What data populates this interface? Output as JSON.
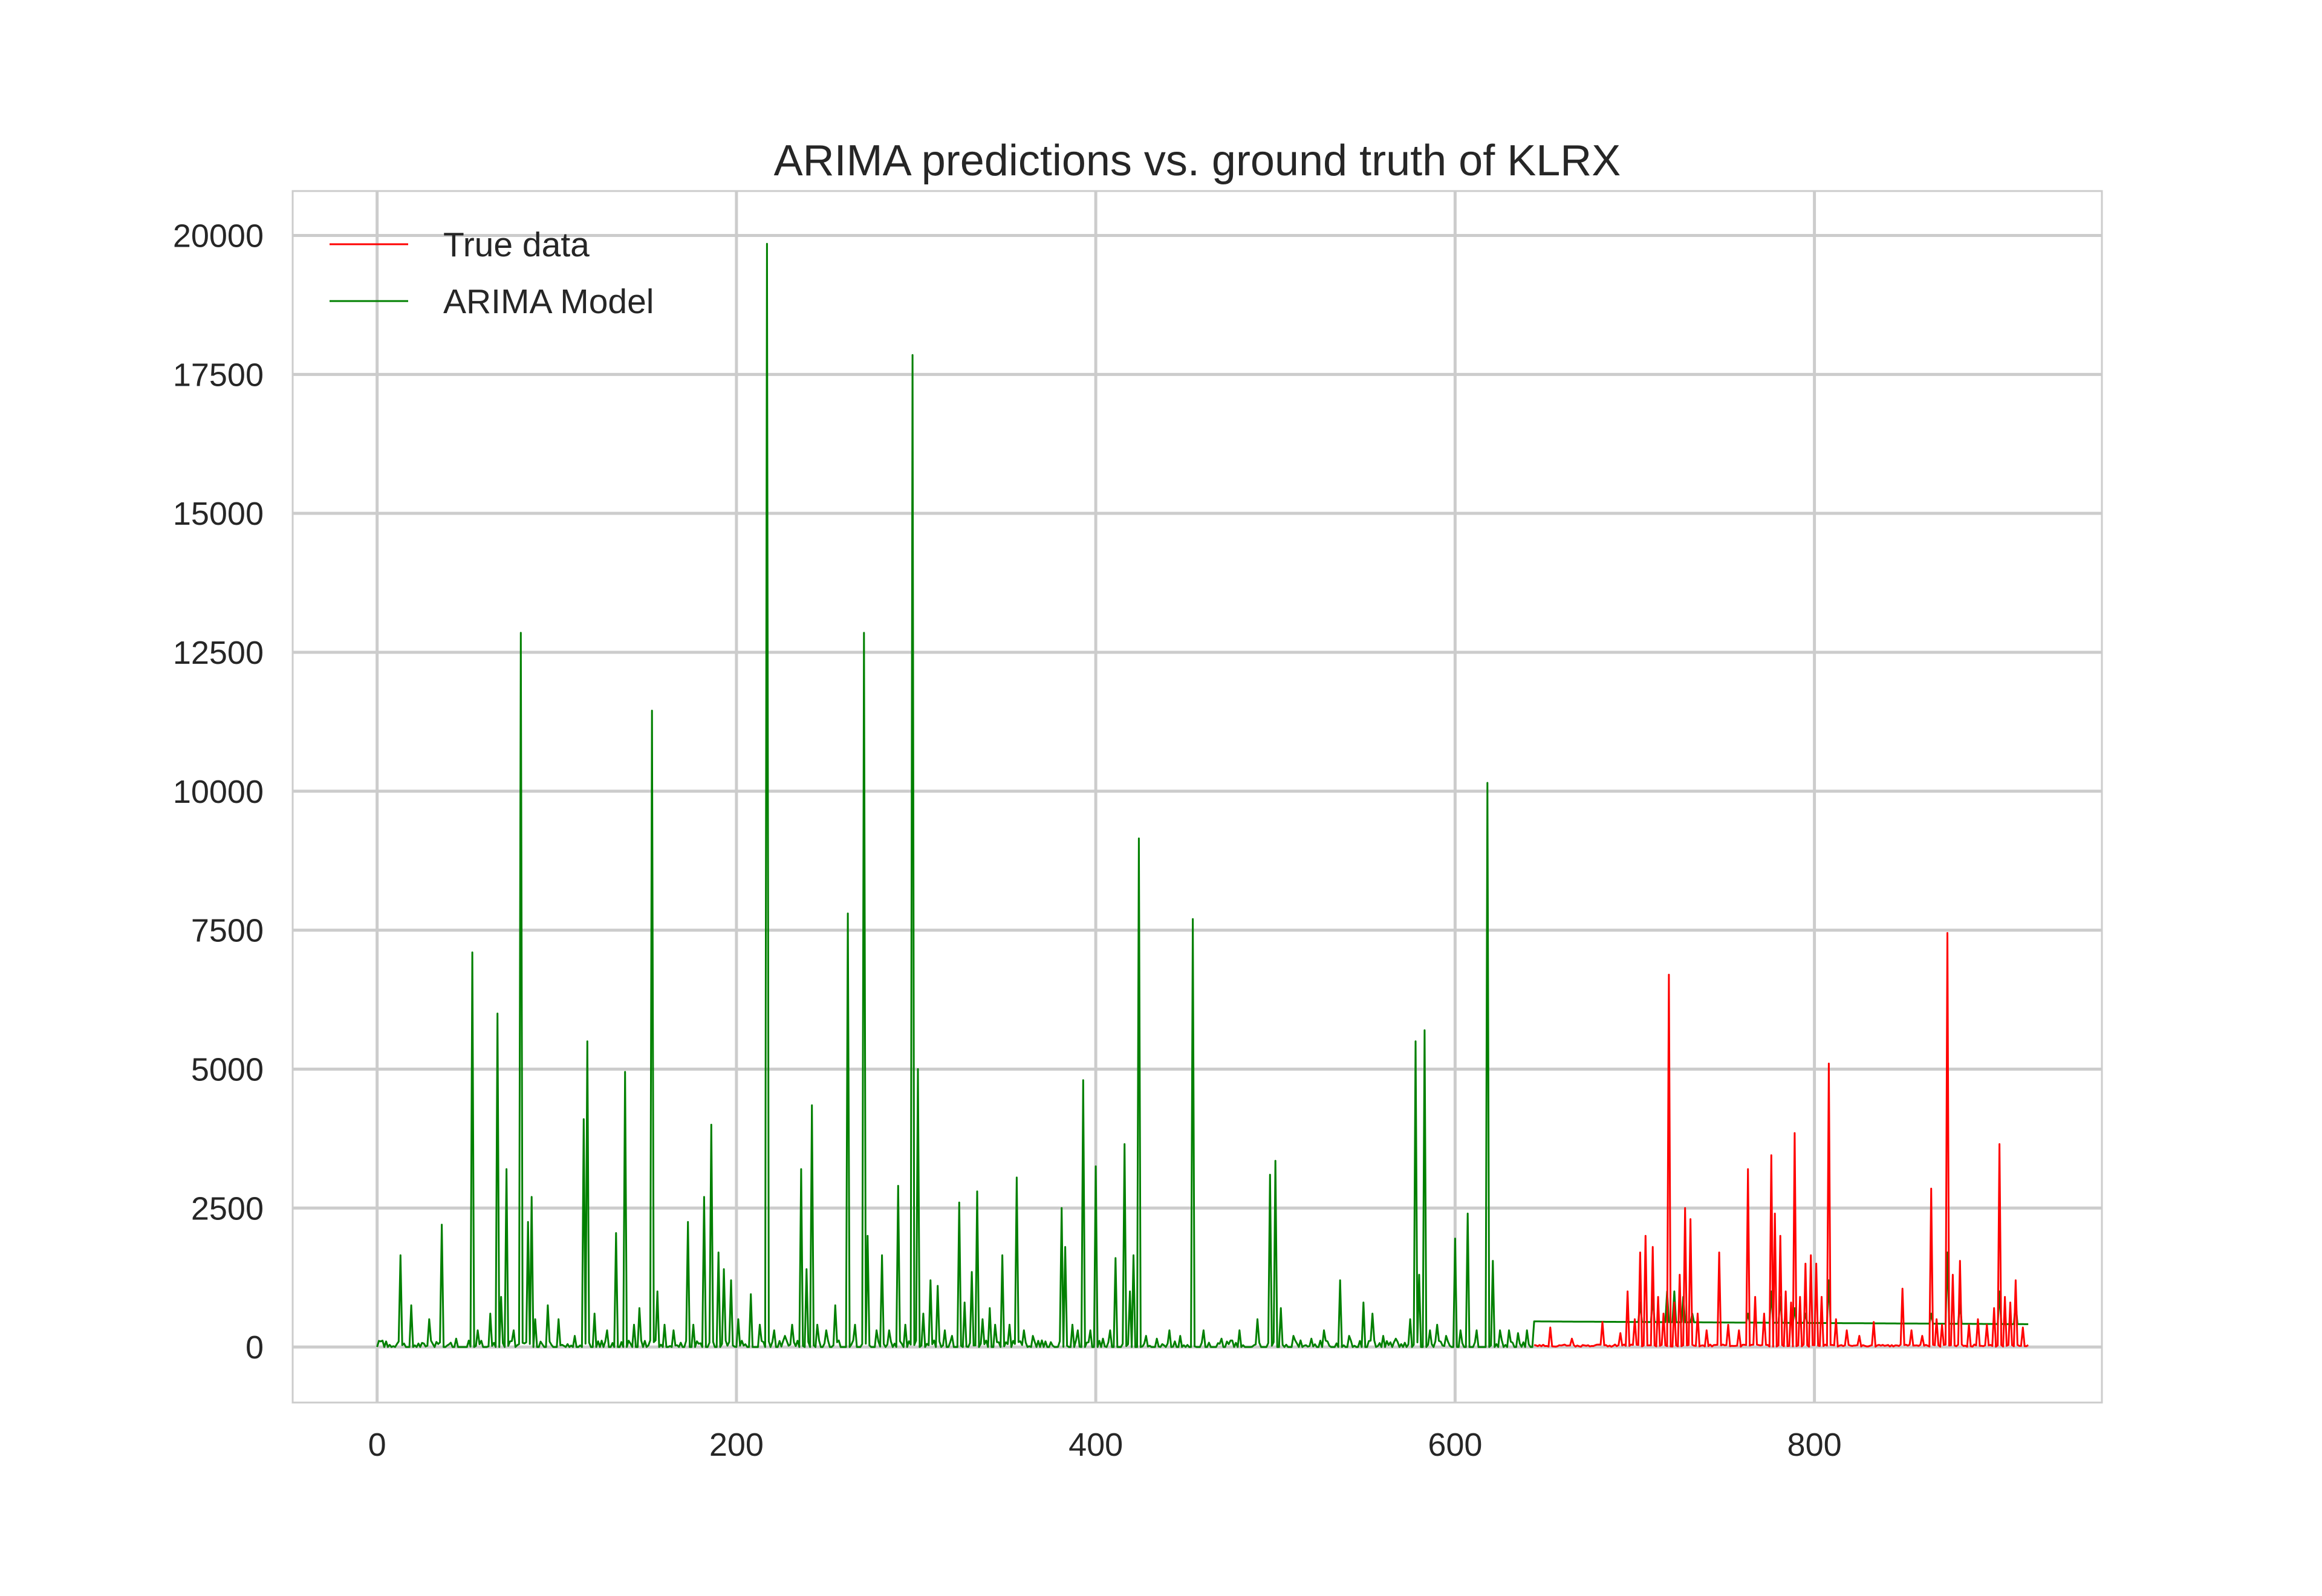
{
  "chart_data": {
    "type": "line",
    "title": "ARIMA predictions vs. ground truth of KLRX",
    "xlabel": "",
    "ylabel": "",
    "xlim": [
      -47,
      960
    ],
    "ylim": [
      -1000,
      20800
    ],
    "xticks": [
      0,
      200,
      400,
      600,
      800
    ],
    "yticks": [
      0,
      2500,
      5000,
      7500,
      10000,
      12500,
      15000,
      17500,
      20000
    ],
    "grid": true,
    "legend_position": "top-left",
    "series": [
      {
        "name": "True data",
        "color": "#ff0000",
        "baseline": 5,
        "x_range": [
          644,
          919
        ],
        "spikes": [
          [
            653,
            350
          ],
          [
            665,
            150
          ],
          [
            682,
            450
          ],
          [
            692,
            250
          ],
          [
            696,
            1000
          ],
          [
            700,
            500
          ],
          [
            703,
            1700
          ],
          [
            706,
            2000
          ],
          [
            710,
            1800
          ],
          [
            713,
            900
          ],
          [
            716,
            600
          ],
          [
            719,
            6700
          ],
          [
            722,
            800
          ],
          [
            725,
            1300
          ],
          [
            728,
            2500
          ],
          [
            731,
            2300
          ],
          [
            735,
            600
          ],
          [
            740,
            300
          ],
          [
            747,
            1700
          ],
          [
            752,
            400
          ],
          [
            758,
            300
          ],
          [
            763,
            3200
          ],
          [
            767,
            900
          ],
          [
            772,
            600
          ],
          [
            776,
            3450
          ],
          [
            778,
            2400
          ],
          [
            781,
            2000
          ],
          [
            784,
            1000
          ],
          [
            787,
            800
          ],
          [
            789,
            3850
          ],
          [
            792,
            900
          ],
          [
            795,
            1500
          ],
          [
            798,
            1650
          ],
          [
            801,
            1500
          ],
          [
            804,
            900
          ],
          [
            808,
            5100
          ],
          [
            812,
            500
          ],
          [
            818,
            300
          ],
          [
            825,
            200
          ],
          [
            833,
            450
          ],
          [
            849,
            1050
          ],
          [
            854,
            300
          ],
          [
            860,
            200
          ],
          [
            865,
            2850
          ],
          [
            868,
            500
          ],
          [
            871,
            400
          ],
          [
            874,
            7450
          ],
          [
            877,
            1300
          ],
          [
            881,
            1550
          ],
          [
            886,
            400
          ],
          [
            891,
            500
          ],
          [
            896,
            400
          ],
          [
            900,
            700
          ],
          [
            903,
            3650
          ],
          [
            906,
            900
          ],
          [
            909,
            800
          ],
          [
            912,
            1200
          ],
          [
            916,
            350
          ]
        ]
      },
      {
        "name": "ARIMA Model",
        "color": "#008000",
        "x_range": [
          0,
          919
        ],
        "forecast_start": 644,
        "forecast_level_start": 460,
        "forecast_level_end": 410,
        "spikes": [
          [
            5,
            100
          ],
          [
            13,
            1650
          ],
          [
            19,
            750
          ],
          [
            29,
            500
          ],
          [
            36,
            2200
          ],
          [
            44,
            150
          ],
          [
            53,
            7100
          ],
          [
            56,
            300
          ],
          [
            63,
            600
          ],
          [
            67,
            6000
          ],
          [
            69,
            900
          ],
          [
            72,
            3200
          ],
          [
            76,
            300
          ],
          [
            80,
            12850
          ],
          [
            84,
            2250
          ],
          [
            86,
            2700
          ],
          [
            88,
            500
          ],
          [
            95,
            750
          ],
          [
            101,
            500
          ],
          [
            110,
            200
          ],
          [
            115,
            4100
          ],
          [
            117,
            5500
          ],
          [
            121,
            600
          ],
          [
            128,
            300
          ],
          [
            133,
            2050
          ],
          [
            138,
            4950
          ],
          [
            143,
            400
          ],
          [
            146,
            700
          ],
          [
            153,
            11450
          ],
          [
            156,
            1000
          ],
          [
            160,
            400
          ],
          [
            165,
            300
          ],
          [
            173,
            2250
          ],
          [
            176,
            400
          ],
          [
            182,
            2700
          ],
          [
            186,
            4000
          ],
          [
            190,
            1700
          ],
          [
            193,
            1400
          ],
          [
            197,
            1200
          ],
          [
            201,
            500
          ],
          [
            208,
            950
          ],
          [
            213,
            400
          ],
          [
            217,
            19850
          ],
          [
            221,
            300
          ],
          [
            227,
            200
          ],
          [
            231,
            400
          ],
          [
            236,
            3200
          ],
          [
            239,
            1400
          ],
          [
            242,
            4350
          ],
          [
            245,
            400
          ],
          [
            250,
            300
          ],
          [
            255,
            750
          ],
          [
            262,
            7800
          ],
          [
            266,
            400
          ],
          [
            271,
            12850
          ],
          [
            273,
            2000
          ],
          [
            278,
            300
          ],
          [
            281,
            1650
          ],
          [
            285,
            300
          ],
          [
            290,
            2900
          ],
          [
            294,
            400
          ],
          [
            298,
            17850
          ],
          [
            301,
            5000
          ],
          [
            304,
            600
          ],
          [
            308,
            1200
          ],
          [
            312,
            1100
          ],
          [
            316,
            300
          ],
          [
            320,
            200
          ],
          [
            324,
            2600
          ],
          [
            327,
            800
          ],
          [
            331,
            1350
          ],
          [
            334,
            2800
          ],
          [
            337,
            500
          ],
          [
            341,
            700
          ],
          [
            344,
            400
          ],
          [
            348,
            1650
          ],
          [
            352,
            400
          ],
          [
            356,
            3050
          ],
          [
            360,
            300
          ],
          [
            365,
            200
          ],
          [
            372,
            100
          ],
          [
            381,
            2500
          ],
          [
            383,
            1800
          ],
          [
            387,
            400
          ],
          [
            390,
            300
          ],
          [
            393,
            4800
          ],
          [
            397,
            300
          ],
          [
            400,
            3250
          ],
          [
            404,
            150
          ],
          [
            408,
            300
          ],
          [
            411,
            1600
          ],
          [
            416,
            3650
          ],
          [
            419,
            1000
          ],
          [
            421,
            1650
          ],
          [
            424,
            9150
          ],
          [
            428,
            200
          ],
          [
            434,
            150
          ],
          [
            441,
            300
          ],
          [
            447,
            200
          ],
          [
            454,
            7700
          ],
          [
            460,
            300
          ],
          [
            470,
            150
          ],
          [
            480,
            300
          ],
          [
            490,
            500
          ],
          [
            497,
            3100
          ],
          [
            500,
            3350
          ],
          [
            503,
            700
          ],
          [
            510,
            200
          ],
          [
            520,
            150
          ],
          [
            527,
            300
          ],
          [
            536,
            1200
          ],
          [
            541,
            200
          ],
          [
            549,
            800
          ],
          [
            554,
            600
          ],
          [
            560,
            200
          ],
          [
            567,
            150
          ],
          [
            575,
            500
          ],
          [
            578,
            5500
          ],
          [
            580,
            1300
          ],
          [
            583,
            5700
          ],
          [
            586,
            300
          ],
          [
            590,
            400
          ],
          [
            595,
            200
          ],
          [
            600,
            1950
          ],
          [
            603,
            300
          ],
          [
            607,
            2400
          ],
          [
            612,
            300
          ],
          [
            618,
            10150
          ],
          [
            621,
            1550
          ],
          [
            625,
            300
          ],
          [
            630,
            300
          ],
          [
            635,
            250
          ],
          [
            640,
            300
          ]
        ],
        "forecast_bumps": [
          [
            703,
            800
          ],
          [
            710,
            900
          ],
          [
            718,
            1000
          ],
          [
            722,
            1000
          ],
          [
            727,
            900
          ],
          [
            732,
            600
          ],
          [
            763,
            600
          ],
          [
            776,
            1000
          ],
          [
            781,
            900
          ],
          [
            789,
            700
          ],
          [
            795,
            600
          ],
          [
            808,
            1200
          ],
          [
            865,
            600
          ],
          [
            874,
            1700
          ],
          [
            881,
            800
          ],
          [
            903,
            1000
          ],
          [
            912,
            800
          ]
        ]
      }
    ]
  }
}
